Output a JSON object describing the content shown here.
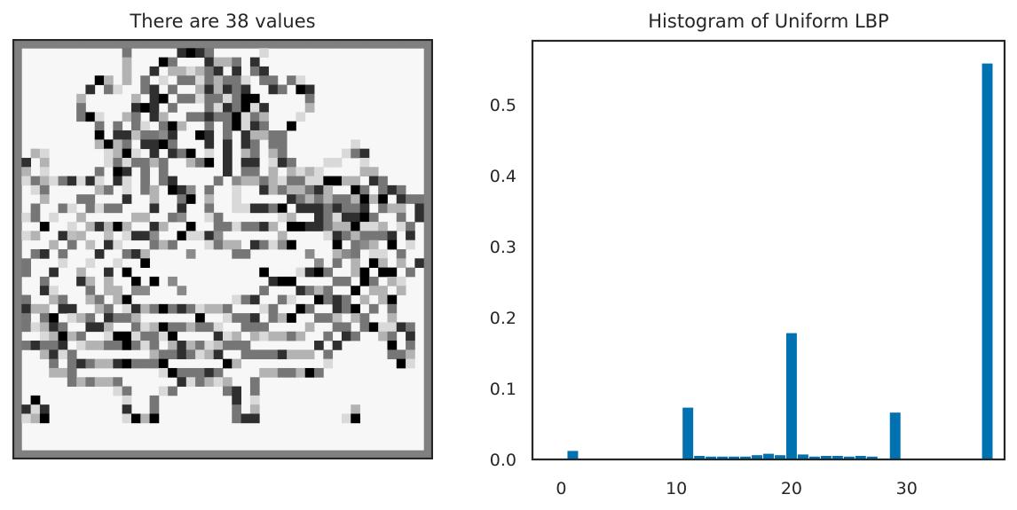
{
  "left_panel": {
    "title": "There are 38 values",
    "image_kind": "lbp-texture-map",
    "grid_size": 46
  },
  "chart_data": {
    "type": "bar",
    "title": "Histogram of Uniform LBP",
    "xlabel": "",
    "ylabel": "",
    "xlim": [
      -2.5,
      38.5
    ],
    "ylim": [
      0,
      0.59
    ],
    "xticks": [
      0,
      10,
      20,
      30
    ],
    "yticks": [
      0.0,
      0.1,
      0.2,
      0.3,
      0.4,
      0.5
    ],
    "ytick_labels": [
      "0.0",
      "0.1",
      "0.2",
      "0.3",
      "0.4",
      "0.5"
    ],
    "grid": false,
    "color": "#0072b2",
    "x": [
      1,
      11,
      12,
      13,
      14,
      15,
      16,
      17,
      18,
      19,
      20,
      21,
      22,
      23,
      24,
      25,
      26,
      27,
      29,
      37
    ],
    "values": [
      0.012,
      0.073,
      0.005,
      0.004,
      0.004,
      0.004,
      0.004,
      0.006,
      0.008,
      0.006,
      0.178,
      0.007,
      0.004,
      0.005,
      0.005,
      0.004,
      0.005,
      0.004,
      0.066,
      0.558
    ]
  }
}
